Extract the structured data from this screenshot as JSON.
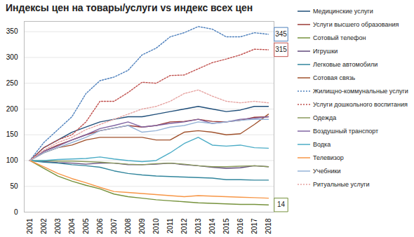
{
  "chart_data": {
    "type": "line",
    "title": "Индексы цен на товары/услуги vs индекс всех цен",
    "categories": [
      "2001",
      "2002",
      "2003",
      "2004",
      "2005",
      "2006",
      "2007",
      "2008",
      "2009",
      "2010",
      "2011",
      "2012",
      "2013",
      "2014",
      "2015",
      "2016",
      "2017",
      "2018"
    ],
    "ylim": [
      0,
      370
    ],
    "yticks": [
      0,
      50,
      100,
      150,
      200,
      250,
      300,
      350
    ],
    "grid": true,
    "legend": "right",
    "series": [
      {
        "name": "Медицинские услуги",
        "color": "#1f4e79",
        "line_style": "solid",
        "values": [
          100,
          125,
          140,
          155,
          165,
          175,
          180,
          185,
          185,
          190,
          195,
          200,
          205,
          200,
          195,
          198,
          205,
          205
        ]
      },
      {
        "name": "Услуги высшего образования",
        "color": "#9b3a36",
        "line_style": "solid",
        "values": [
          100,
          118,
          130,
          140,
          150,
          158,
          163,
          168,
          165,
          168,
          175,
          176,
          180,
          176,
          175,
          178,
          184,
          185
        ]
      },
      {
        "name": "Сотовый телефон",
        "color": "#76923c",
        "line_style": "solid",
        "values": [
          100,
          85,
          70,
          60,
          52,
          45,
          35,
          30,
          27,
          24,
          22,
          20,
          18,
          17,
          16,
          15,
          15,
          14
        ]
      },
      {
        "name": "Игрушки",
        "color": "#604a7b",
        "line_style": "solid",
        "values": [
          100,
          98,
          96,
          95,
          93,
          95,
          95,
          92,
          92,
          93,
          95,
          92,
          90,
          87,
          85,
          86,
          90,
          88
        ]
      },
      {
        "name": "Легковые автомобили",
        "color": "#31859c",
        "line_style": "solid",
        "values": [
          100,
          97,
          95,
          92,
          90,
          87,
          80,
          75,
          72,
          70,
          69,
          68,
          67,
          66,
          63,
          63,
          62,
          62
        ]
      },
      {
        "name": "Сотовая связь",
        "color": "#a0522d",
        "line_style": "solid",
        "values": [
          100,
          115,
          125,
          130,
          140,
          145,
          145,
          145,
          145,
          140,
          140,
          155,
          158,
          155,
          150,
          152,
          170,
          190
        ]
      },
      {
        "name": "Жилищно-коммунальные услуги",
        "color": "#4f81bd",
        "line_style": "dotted",
        "values": [
          100,
          135,
          160,
          185,
          230,
          255,
          262,
          275,
          305,
          318,
          340,
          348,
          360,
          355,
          340,
          340,
          348,
          345
        ]
      },
      {
        "name": "Услуги дошкольного воспитания",
        "color": "#c0504d",
        "line_style": "dotted",
        "values": [
          100,
          125,
          140,
          150,
          175,
          215,
          215,
          232,
          252,
          250,
          265,
          266,
          278,
          290,
          297,
          305,
          316,
          315
        ]
      },
      {
        "name": "Одежда",
        "color": "#8a9a5b",
        "line_style": "solid",
        "values": [
          100,
          100,
          99,
          99,
          98,
          97,
          95,
          93,
          92,
          94,
          95,
          93,
          90,
          88,
          88,
          89,
          90,
          88
        ]
      },
      {
        "name": "Воздушный транспорт",
        "color": "#8064a2",
        "line_style": "solid",
        "values": [
          100,
          118,
          128,
          140,
          150,
          162,
          168,
          175,
          165,
          168,
          172,
          175,
          180,
          172,
          175,
          180,
          182,
          185
        ]
      },
      {
        "name": "Водка",
        "color": "#4bacc6",
        "line_style": "solid",
        "values": [
          100,
          100,
          102,
          103,
          104,
          107,
          103,
          100,
          98,
          100,
          115,
          133,
          145,
          130,
          128,
          130,
          125,
          124
        ]
      },
      {
        "name": "Телевизор",
        "color": "#f79646",
        "line_style": "solid",
        "values": [
          100,
          88,
          75,
          65,
          57,
          48,
          40,
          38,
          36,
          34,
          32,
          30,
          32,
          31,
          30,
          29,
          28,
          27
        ]
      },
      {
        "name": "Учебники",
        "color": "#95b3d7",
        "line_style": "solid",
        "values": [
          100,
          115,
          125,
          135,
          145,
          158,
          163,
          168,
          155,
          158,
          165,
          168,
          175,
          172,
          175,
          178,
          180,
          180
        ]
      },
      {
        "name": "Ритуальные услуги",
        "color": "#e6a3a1",
        "line_style": "dotted",
        "values": [
          100,
          120,
          135,
          145,
          160,
          170,
          180,
          190,
          200,
          205,
          215,
          230,
          237,
          225,
          215,
          212,
          215,
          212
        ]
      }
    ],
    "annotations": [
      {
        "text": "345",
        "series": "Жилищно-коммунальные услуги"
      },
      {
        "text": "315",
        "series": "Услуги дошкольного воспитания"
      },
      {
        "text": "14",
        "series": "Сотовый телефон"
      }
    ]
  }
}
